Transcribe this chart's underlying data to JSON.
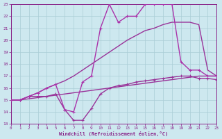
{
  "xlabel": "Windchill (Refroidissement éolien,°C)",
  "xlim": [
    0,
    23
  ],
  "ylim": [
    13,
    23
  ],
  "yticks": [
    13,
    14,
    15,
    16,
    17,
    18,
    19,
    20,
    21,
    22,
    23
  ],
  "xticks": [
    0,
    1,
    2,
    3,
    4,
    5,
    6,
    7,
    8,
    9,
    10,
    11,
    12,
    13,
    14,
    15,
    16,
    17,
    18,
    19,
    20,
    21,
    22,
    23
  ],
  "bg_color": "#cde8ef",
  "grid_color": "#aacdd6",
  "lines": [
    {
      "x": [
        0,
        1,
        2,
        3,
        4,
        5,
        6,
        7,
        8,
        9,
        10,
        11,
        12,
        13,
        14,
        15,
        16,
        17,
        18,
        19,
        20,
        21,
        22,
        23
      ],
      "y": [
        15,
        15,
        15.3,
        15.3,
        15.3,
        15.5,
        14.2,
        13.3,
        13.3,
        14.3,
        15.5,
        16.0,
        16.2,
        16.3,
        16.5,
        16.6,
        16.7,
        16.8,
        16.9,
        17.0,
        17.0,
        16.8,
        16.8,
        16.7
      ],
      "marker": true,
      "color": "#993399",
      "linewidth": 1.0
    },
    {
      "x": [
        0,
        1,
        2,
        3,
        4,
        5,
        6,
        7,
        8,
        9,
        10,
        11,
        12,
        13,
        14,
        15,
        16,
        17,
        18,
        19,
        20,
        21,
        22,
        23
      ],
      "y": [
        15,
        15,
        15.1,
        15.2,
        15.3,
        15.4,
        15.5,
        15.6,
        15.7,
        15.8,
        15.9,
        16.0,
        16.1,
        16.2,
        16.3,
        16.4,
        16.5,
        16.6,
        16.7,
        16.8,
        16.9,
        17.0,
        17.0,
        17.0
      ],
      "marker": false,
      "color": "#993399",
      "linewidth": 1.0
    },
    {
      "x": [
        0,
        1,
        2,
        3,
        4,
        5,
        6,
        7,
        8,
        9,
        10,
        11,
        12,
        13,
        14,
        15,
        16,
        17,
        18,
        19,
        20,
        21,
        22,
        23
      ],
      "y": [
        15,
        15,
        15.3,
        15.6,
        16.0,
        16.3,
        16.6,
        17.0,
        17.5,
        18.0,
        18.5,
        19.0,
        19.5,
        20.0,
        20.4,
        20.8,
        21.0,
        21.3,
        21.5,
        21.5,
        21.5,
        21.3,
        17.5,
        17.0
      ],
      "marker": false,
      "color": "#993399",
      "linewidth": 1.0
    },
    {
      "x": [
        0,
        1,
        2,
        3,
        4,
        5,
        6,
        7,
        8,
        9,
        10,
        11,
        12,
        13,
        14,
        15,
        16,
        17,
        18,
        19,
        20,
        21,
        22,
        23
      ],
      "y": [
        15,
        15,
        15.3,
        15.6,
        16.0,
        16.3,
        14.2,
        14.0,
        16.5,
        17.0,
        21.0,
        23.0,
        21.5,
        22.0,
        22.0,
        23.0,
        23.0,
        23.0,
        23.0,
        18.2,
        17.5,
        17.5,
        17.0,
        17.0
      ],
      "marker": true,
      "color": "#aa33aa",
      "linewidth": 1.0
    }
  ]
}
